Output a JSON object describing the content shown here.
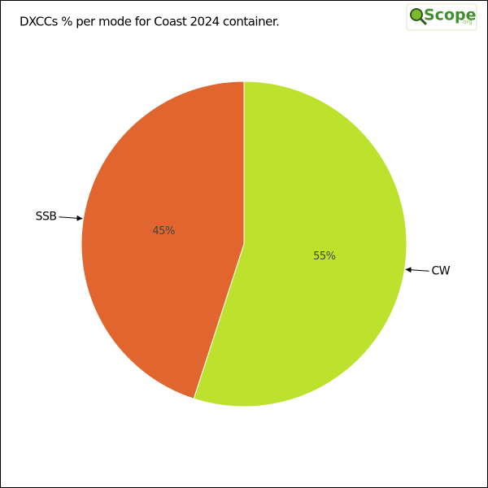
{
  "chart_data": {
    "type": "pie",
    "title": "DXCCs % per mode for Coast 2024 container.",
    "logo": {
      "text": "Scope",
      "suffix": ".org"
    },
    "categories": [
      "CW",
      "SSB"
    ],
    "values": [
      55,
      45
    ],
    "value_labels": [
      "55%",
      "45%"
    ],
    "colors": [
      "#bde22e",
      "#e0652f"
    ]
  }
}
